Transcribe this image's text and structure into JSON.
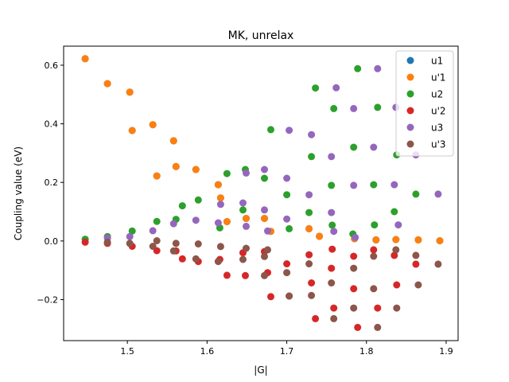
{
  "chart_data": {
    "type": "scatter",
    "title": "MK, unrelax",
    "xlabel": "|G|",
    "ylabel": "Coupling value (eV)",
    "xlim": [
      1.42,
      1.915
    ],
    "ylim": [
      -0.34,
      0.665
    ],
    "xticks": [
      1.5,
      1.6,
      1.7,
      1.8,
      1.9
    ],
    "xtick_labels": [
      "1.5",
      "1.6",
      "1.7",
      "1.8",
      "1.9"
    ],
    "yticks": [
      -0.2,
      0.0,
      0.2,
      0.4,
      0.6
    ],
    "ytick_labels": [
      "−0.2",
      "0.0",
      "0.2",
      "0.4",
      "0.6"
    ],
    "legend_position": "top-right",
    "series": [
      {
        "name": "u1",
        "color": "#1f77b4",
        "points": [
          [
            1.447,
            0.622
          ],
          [
            1.475,
            0.537
          ],
          [
            1.503,
            0.508
          ],
          [
            1.506,
            0.377
          ],
          [
            1.532,
            0.397
          ],
          [
            1.537,
            0.222
          ],
          [
            1.558,
            0.342
          ],
          [
            1.561,
            0.254
          ],
          [
            1.586,
            0.244
          ],
          [
            1.614,
            0.192
          ],
          [
            1.617,
            0.147
          ],
          [
            1.625,
            0.066
          ],
          [
            1.649,
            0.077
          ],
          [
            1.672,
            0.077
          ],
          [
            1.68,
            0.033
          ],
          [
            1.728,
            0.042
          ],
          [
            1.741,
            0.016
          ],
          [
            1.785,
            0.008
          ],
          [
            1.812,
            0.004
          ],
          [
            1.837,
            0.005
          ],
          [
            1.865,
            0.004
          ],
          [
            1.892,
            0.001
          ]
        ]
      },
      {
        "name": "u'1",
        "color": "#ff7f0e",
        "points": [
          [
            1.447,
            0.622
          ],
          [
            1.475,
            0.537
          ],
          [
            1.503,
            0.508
          ],
          [
            1.506,
            0.377
          ],
          [
            1.532,
            0.397
          ],
          [
            1.537,
            0.222
          ],
          [
            1.558,
            0.342
          ],
          [
            1.561,
            0.254
          ],
          [
            1.586,
            0.244
          ],
          [
            1.614,
            0.192
          ],
          [
            1.617,
            0.147
          ],
          [
            1.625,
            0.066
          ],
          [
            1.649,
            0.077
          ],
          [
            1.672,
            0.077
          ],
          [
            1.68,
            0.033
          ],
          [
            1.728,
            0.042
          ],
          [
            1.741,
            0.016
          ],
          [
            1.785,
            0.008
          ],
          [
            1.812,
            0.004
          ],
          [
            1.837,
            0.005
          ],
          [
            1.865,
            0.004
          ],
          [
            1.892,
            0.001
          ]
        ]
      },
      {
        "name": "u2",
        "color": "#2ca02c",
        "points": [
          [
            1.447,
            0.006
          ],
          [
            1.475,
            0.015
          ],
          [
            1.506,
            0.034
          ],
          [
            1.537,
            0.067
          ],
          [
            1.561,
            0.074
          ],
          [
            1.569,
            0.12
          ],
          [
            1.589,
            0.14
          ],
          [
            1.616,
            0.045
          ],
          [
            1.625,
            0.23
          ],
          [
            1.645,
            0.106
          ],
          [
            1.648,
            0.244
          ],
          [
            1.672,
            0.214
          ],
          [
            1.68,
            0.38
          ],
          [
            1.7,
            0.158
          ],
          [
            1.703,
            0.042
          ],
          [
            1.728,
            0.097
          ],
          [
            1.731,
            0.288
          ],
          [
            1.736,
            0.522
          ],
          [
            1.756,
            0.19
          ],
          [
            1.759,
            0.452
          ],
          [
            1.784,
            0.32
          ],
          [
            1.789,
            0.588
          ],
          [
            1.809,
            0.192
          ],
          [
            1.814,
            0.456
          ],
          [
            1.835,
            0.1
          ],
          [
            1.838,
            0.294
          ],
          [
            1.862,
            0.16
          ],
          [
            1.757,
            0.054
          ],
          [
            1.783,
            0.024
          ],
          [
            1.81,
            0.055
          ]
        ]
      },
      {
        "name": "u'2",
        "color": "#d62728",
        "points": [
          [
            1.447,
            -0.004
          ],
          [
            1.475,
            -0.008
          ],
          [
            1.506,
            -0.018
          ],
          [
            1.537,
            -0.033
          ],
          [
            1.561,
            -0.034
          ],
          [
            1.569,
            -0.061
          ],
          [
            1.589,
            -0.07
          ],
          [
            1.616,
            -0.063
          ],
          [
            1.625,
            -0.117
          ],
          [
            1.645,
            -0.04
          ],
          [
            1.648,
            -0.118
          ],
          [
            1.672,
            -0.036
          ],
          [
            1.676,
            -0.108
          ],
          [
            1.68,
            -0.19
          ],
          [
            1.7,
            -0.078
          ],
          [
            1.703,
            -0.188
          ],
          [
            1.728,
            -0.047
          ],
          [
            1.731,
            -0.143
          ],
          [
            1.736,
            -0.265
          ],
          [
            1.756,
            -0.093
          ],
          [
            1.759,
            -0.229
          ],
          [
            1.784,
            -0.052
          ],
          [
            1.784,
            -0.163
          ],
          [
            1.789,
            -0.295
          ],
          [
            1.809,
            -0.03
          ],
          [
            1.814,
            -0.229
          ],
          [
            1.835,
            -0.049
          ],
          [
            1.838,
            -0.15
          ],
          [
            1.862,
            -0.079
          ],
          [
            1.757,
            -0.028
          ]
        ]
      },
      {
        "name": "u3",
        "color": "#9467bd",
        "points": [
          [
            1.475,
            0.01
          ],
          [
            1.503,
            0.015
          ],
          [
            1.532,
            0.035
          ],
          [
            1.558,
            0.059
          ],
          [
            1.586,
            0.071
          ],
          [
            1.614,
            0.062
          ],
          [
            1.617,
            0.125
          ],
          [
            1.645,
            0.13
          ],
          [
            1.649,
            0.232
          ],
          [
            1.672,
            0.106
          ],
          [
            1.672,
            0.244
          ],
          [
            1.7,
            0.075
          ],
          [
            1.7,
            0.214
          ],
          [
            1.703,
            0.378
          ],
          [
            1.728,
            0.158
          ],
          [
            1.731,
            0.363
          ],
          [
            1.756,
            0.097
          ],
          [
            1.756,
            0.288
          ],
          [
            1.762,
            0.523
          ],
          [
            1.784,
            0.19
          ],
          [
            1.784,
            0.452
          ],
          [
            1.809,
            0.32
          ],
          [
            1.814,
            0.588
          ],
          [
            1.835,
            0.192
          ],
          [
            1.837,
            0.456
          ],
          [
            1.862,
            0.294
          ],
          [
            1.89,
            0.16
          ],
          [
            1.649,
            0.05
          ],
          [
            1.676,
            0.034
          ],
          [
            1.759,
            0.033
          ],
          [
            1.786,
            0.012
          ],
          [
            1.84,
            0.055
          ]
        ]
      },
      {
        "name": "u'3",
        "color": "#8c564b",
        "points": [
          [
            1.475,
            -0.004
          ],
          [
            1.503,
            -0.008
          ],
          [
            1.532,
            -0.018
          ],
          [
            1.537,
            0.001
          ],
          [
            1.558,
            -0.034
          ],
          [
            1.561,
            -0.008
          ],
          [
            1.586,
            -0.061
          ],
          [
            1.589,
            -0.01
          ],
          [
            1.614,
            -0.07
          ],
          [
            1.617,
            -0.019
          ],
          [
            1.645,
            -0.063
          ],
          [
            1.649,
            -0.025
          ],
          [
            1.672,
            -0.118
          ],
          [
            1.672,
            -0.053
          ],
          [
            1.676,
            -0.03
          ],
          [
            1.7,
            -0.108
          ],
          [
            1.703,
            -0.188
          ],
          [
            1.728,
            -0.078
          ],
          [
            1.731,
            -0.186
          ],
          [
            1.756,
            -0.143
          ],
          [
            1.759,
            -0.265
          ],
          [
            1.784,
            -0.093
          ],
          [
            1.784,
            -0.229
          ],
          [
            1.809,
            -0.052
          ],
          [
            1.809,
            -0.163
          ],
          [
            1.814,
            -0.295
          ],
          [
            1.837,
            -0.03
          ],
          [
            1.838,
            -0.229
          ],
          [
            1.862,
            -0.049
          ],
          [
            1.865,
            -0.15
          ],
          [
            1.89,
            -0.079
          ]
        ]
      }
    ]
  }
}
